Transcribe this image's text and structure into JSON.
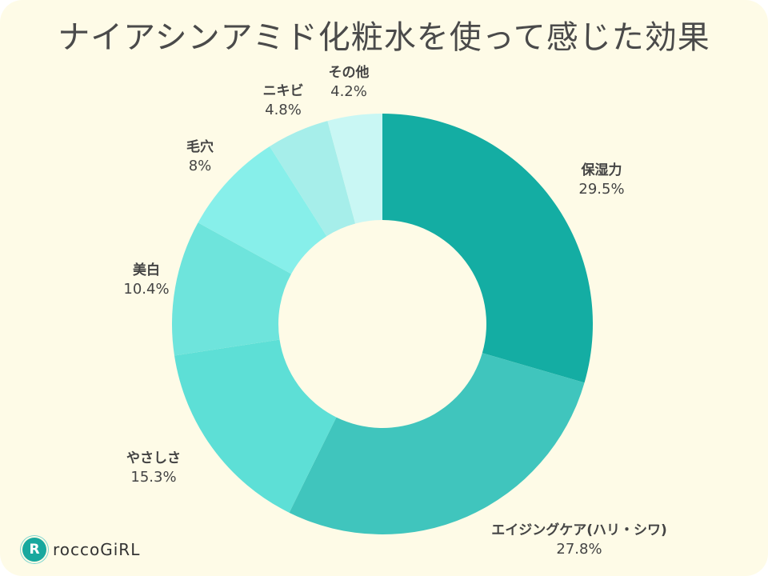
{
  "chart_data": {
    "type": "pie",
    "variant": "donut",
    "title": "ナイアシンアミド化粧水を使って感じた効果",
    "start": "top",
    "direction": "clockwise",
    "slices": [
      {
        "label": "保湿力",
        "value": 29.5,
        "value_label": "29.5%",
        "color": "#14ada3"
      },
      {
        "label": "エイジングケア(ハリ・シワ)",
        "value": 27.8,
        "value_label": "27.8%",
        "color": "#40c5bd"
      },
      {
        "label": "やさしさ",
        "value": 15.3,
        "value_label": "15.3%",
        "color": "#5ddfd6"
      },
      {
        "label": "美白",
        "value": 10.4,
        "value_label": "10.4%",
        "color": "#6ee4dc"
      },
      {
        "label": "毛穴",
        "value": 8,
        "value_label": "8%",
        "color": "#87efea"
      },
      {
        "label": "ニキビ",
        "value": 4.8,
        "value_label": "4.8%",
        "color": "#a6eeea"
      },
      {
        "label": "その他",
        "value": 4.2,
        "value_label": "4.2%",
        "color": "#c9f7f4"
      }
    ],
    "legend": "none"
  },
  "logo": {
    "mark": "R",
    "text": "roccoGiRL"
  }
}
